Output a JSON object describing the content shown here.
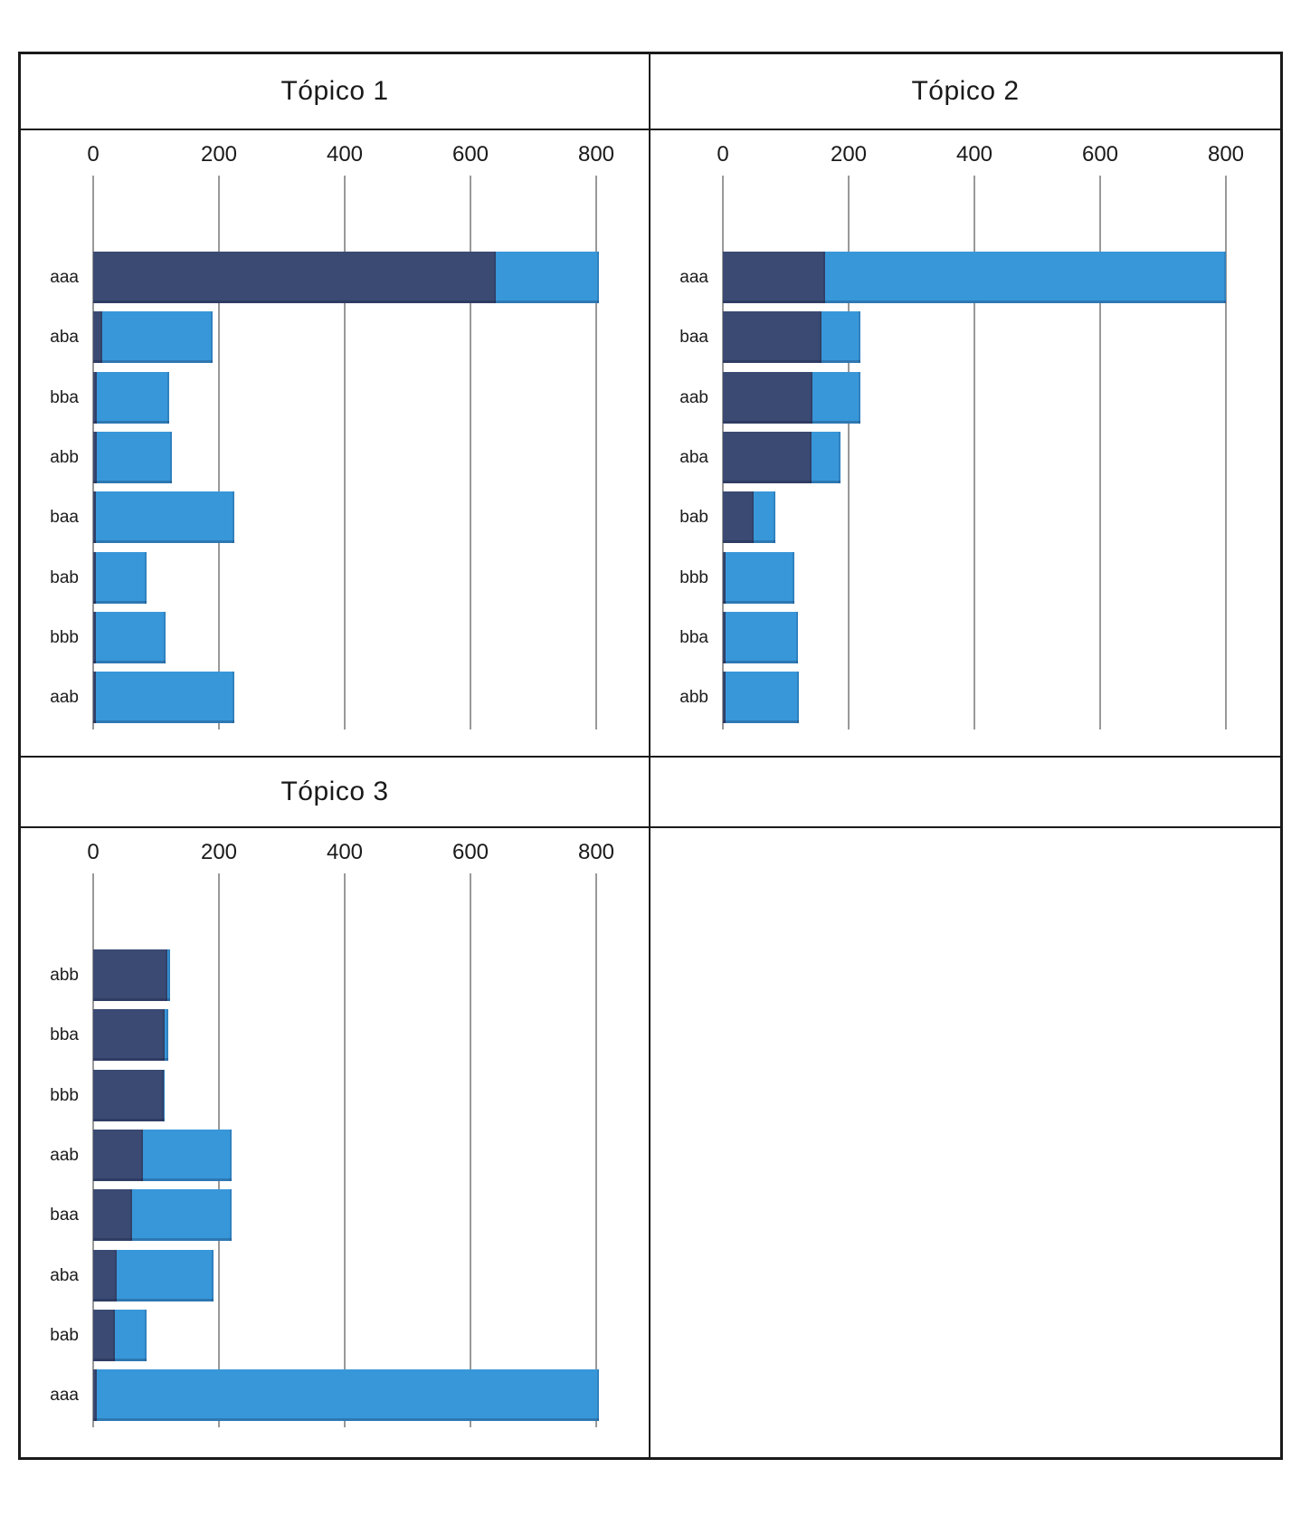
{
  "figure": {
    "background": "#ffffff"
  },
  "colors": {
    "dark_navy": "#3A4A72",
    "light_blue": "#3897D9",
    "gridline": "#999999",
    "table_border": "#1A1A1A",
    "text": "#1A1A1A"
  },
  "panels": [
    {
      "title": "Tópico 1"
    },
    {
      "title": "Tópico 2"
    },
    {
      "title": "Tópico 3"
    },
    {
      "title": ""
    }
  ],
  "axis": {
    "xticks": [
      0,
      200,
      400,
      600,
      800
    ],
    "xlim": [
      0,
      800
    ]
  },
  "chart_data": [
    {
      "type": "bar",
      "orientation": "horizontal",
      "stacked": true,
      "title": "Tópico 1",
      "categories": [
        "aaa",
        "aba",
        "bba",
        "abb",
        "baa",
        "bab",
        "bbb",
        "aab"
      ],
      "series": [
        {
          "name": "dark_navy_segment",
          "color": "#3A4A72",
          "values": [
            640,
            14,
            6,
            6,
            5,
            4,
            4,
            5
          ]
        },
        {
          "name": "light_blue_segment",
          "color": "#3897D9",
          "values": [
            165,
            176,
            115,
            119,
            220,
            81,
            111,
            220
          ]
        }
      ],
      "totals": [
        805,
        190,
        121,
        125,
        225,
        85,
        115,
        225
      ],
      "xlabel": "",
      "ylabel": "",
      "xlim": [
        0,
        800
      ],
      "xticks": [
        0,
        200,
        400,
        600,
        800
      ],
      "grid": true,
      "legend": false
    },
    {
      "type": "bar",
      "orientation": "horizontal",
      "stacked": true,
      "title": "Tópico 2",
      "categories": [
        "aaa",
        "baa",
        "aab",
        "aba",
        "bab",
        "bbb",
        "bba",
        "abb"
      ],
      "series": [
        {
          "name": "dark_navy_segment",
          "color": "#3A4A72",
          "values": [
            163,
            157,
            142,
            141,
            49,
            4,
            4,
            4
          ]
        },
        {
          "name": "light_blue_segment",
          "color": "#3897D9",
          "values": [
            637,
            61,
            76,
            46,
            35,
            110,
            115,
            117
          ]
        }
      ],
      "totals": [
        800,
        218,
        218,
        187,
        84,
        114,
        119,
        121
      ],
      "xlabel": "",
      "ylabel": "",
      "xlim": [
        0,
        800
      ],
      "xticks": [
        0,
        200,
        400,
        600,
        800
      ],
      "grid": true,
      "legend": false
    },
    {
      "type": "bar",
      "orientation": "horizontal",
      "stacked": true,
      "title": "Tópico 3",
      "categories": [
        "abb",
        "bba",
        "bbb",
        "aab",
        "baa",
        "aba",
        "bab",
        "aaa"
      ],
      "series": [
        {
          "name": "dark_navy_segment",
          "color": "#3A4A72",
          "values": [
            118,
            114,
            112,
            79,
            62,
            38,
            34,
            6
          ]
        },
        {
          "name": "light_blue_segment",
          "color": "#3897D9",
          "values": [
            5,
            6,
            2,
            141,
            158,
            153,
            51,
            799
          ]
        }
      ],
      "totals": [
        123,
        120,
        114,
        220,
        220,
        191,
        85,
        805
      ],
      "xlabel": "",
      "ylabel": "",
      "xlim": [
        0,
        800
      ],
      "xticks": [
        0,
        200,
        400,
        600,
        800
      ],
      "grid": true,
      "legend": false
    }
  ]
}
